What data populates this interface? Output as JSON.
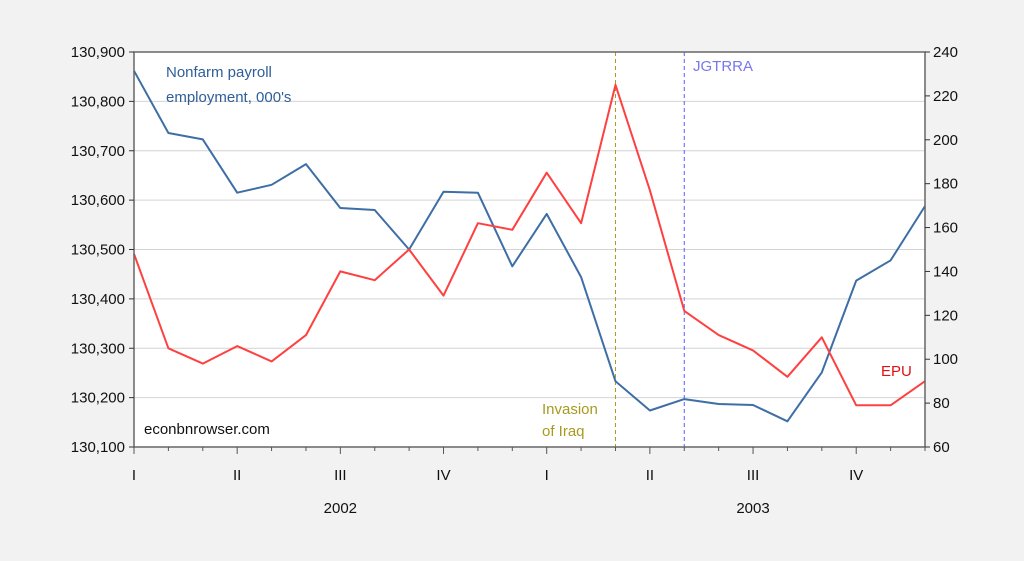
{
  "chart_data": {
    "type": "line",
    "title": "",
    "xlabel": "",
    "ylabel_left": "Nonfarm payroll employment, 000's",
    "ylabel_right": "EPU",
    "x": [
      "2002-01",
      "2002-02",
      "2002-03",
      "2002-04",
      "2002-05",
      "2002-06",
      "2002-07",
      "2002-08",
      "2002-09",
      "2002-10",
      "2002-11",
      "2002-12",
      "2003-01",
      "2003-02",
      "2003-03",
      "2003-04",
      "2003-05",
      "2003-06",
      "2003-07",
      "2003-08",
      "2003-09",
      "2003-10",
      "2003-11",
      "2003-12"
    ],
    "series": [
      {
        "name": "Nonfarm payroll employment, 000's",
        "axis": "left",
        "color": "#3d6ea5",
        "values": [
          130862,
          130736,
          130723,
          130615,
          130631,
          130673,
          130584,
          130580,
          130500,
          130617,
          130615,
          130466,
          130572,
          130444,
          130233,
          130174,
          130197,
          130187,
          130185,
          130152,
          130251,
          130437,
          130478,
          130588
        ]
      },
      {
        "name": "EPU",
        "axis": "right",
        "color": "#ff4040",
        "values": [
          148,
          105,
          98,
          106,
          99,
          111,
          140,
          136,
          150,
          129,
          162,
          159,
          185,
          162,
          225,
          177,
          122,
          111,
          104,
          92,
          110,
          79,
          79,
          90
        ]
      }
    ],
    "ylim_left": [
      130100,
      130900
    ],
    "ylim_right": [
      60,
      240
    ],
    "yticks_left": [
      "130,100",
      "130,200",
      "130,300",
      "130,400",
      "130,500",
      "130,600",
      "130,700",
      "130,800",
      "130,900"
    ],
    "yticks_right": [
      "60",
      "80",
      "100",
      "120",
      "140",
      "160",
      "180",
      "200",
      "220",
      "240"
    ],
    "xticks": [
      {
        "label": "I",
        "index": 0
      },
      {
        "label": "II",
        "index": 3
      },
      {
        "label": "III",
        "index": 6
      },
      {
        "label": "IV",
        "index": 9
      },
      {
        "label": "I",
        "index": 12
      },
      {
        "label": "II",
        "index": 15
      },
      {
        "label": "III",
        "index": 18
      },
      {
        "label": "IV",
        "index": 21
      }
    ],
    "years": [
      {
        "label": "2002",
        "center_index": 6
      },
      {
        "label": "2003",
        "center_index": 18
      }
    ],
    "grid": true,
    "vlines": [
      {
        "label": "Invasion of Iraq",
        "index": 14,
        "color": "#a89a20",
        "style": "dashed"
      },
      {
        "label": "JGTRRA",
        "index": 16,
        "color": "#5a5aff",
        "style": "dashed"
      }
    ],
    "annotations": [
      {
        "text": "Nonfarm payroll employment, 000's",
        "color": "#2e5e9a"
      },
      {
        "text": "EPU",
        "color": "#e01010"
      },
      {
        "text": "Invasion of Iraq",
        "color": "#a89a20"
      },
      {
        "text": "JGTRRA",
        "color": "#7777ee"
      },
      {
        "text": "econbnrowser.com",
        "color": "#111111"
      }
    ]
  },
  "labels": {
    "payroll_line1": "Nonfarm payroll",
    "payroll_line2": "employment, 000's",
    "epu": "EPU",
    "invasion_line1": "Invasion",
    "invasion_line2": "of Iraq",
    "jgtrra": "JGTRRA",
    "watermark": "econbnrowser.com"
  }
}
